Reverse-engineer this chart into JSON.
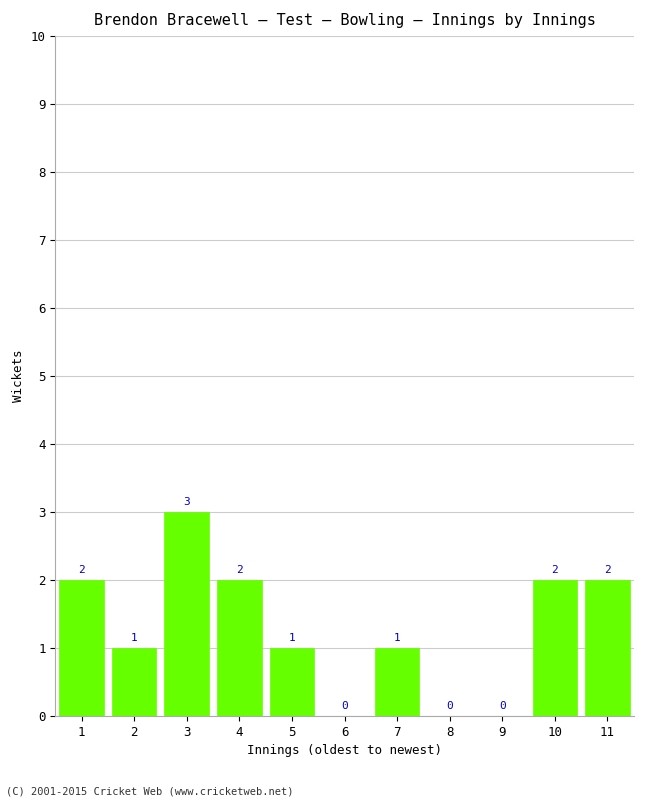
{
  "title": "Brendon Bracewell – Test – Bowling – Innings by Innings",
  "xlabel": "Innings (oldest to newest)",
  "ylabel": "Wickets",
  "categories": [
    "1",
    "2",
    "3",
    "4",
    "5",
    "6",
    "7",
    "8",
    "9",
    "10",
    "11"
  ],
  "values": [
    2,
    1,
    3,
    2,
    1,
    0,
    1,
    0,
    0,
    2,
    2
  ],
  "bar_color": "#66ff00",
  "bar_edge_color": "#66ff00",
  "label_color": "#0000cc",
  "ylim": [
    0,
    10
  ],
  "yticks": [
    0,
    1,
    2,
    3,
    4,
    5,
    6,
    7,
    8,
    9,
    10
  ],
  "background_color": "#ffffff",
  "grid_color": "#cccccc",
  "title_fontsize": 11,
  "axis_label_fontsize": 9,
  "tick_fontsize": 9,
  "label_fontsize": 8,
  "footer": "(C) 2001-2015 Cricket Web (www.cricketweb.net)",
  "footer_fontsize": 7.5
}
